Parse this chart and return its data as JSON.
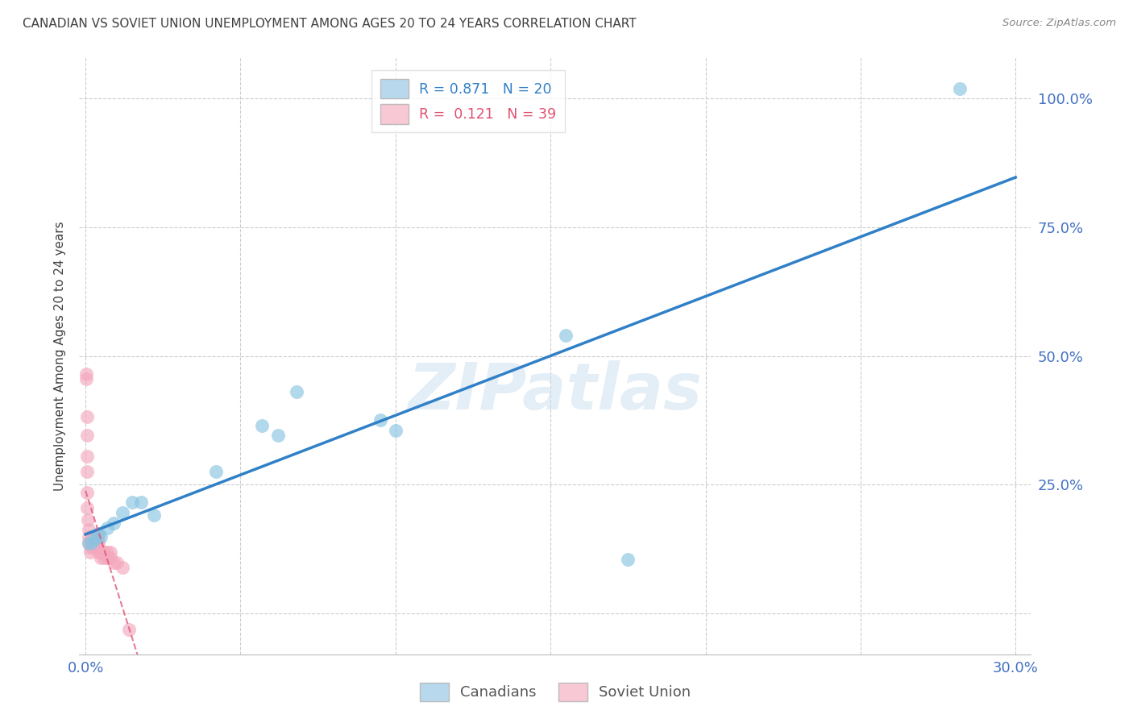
{
  "title": "CANADIAN VS SOVIET UNION UNEMPLOYMENT AMONG AGES 20 TO 24 YEARS CORRELATION CHART",
  "source": "Source: ZipAtlas.com",
  "xlabel": "",
  "ylabel": "Unemployment Among Ages 20 to 24 years",
  "xlim": [
    -0.002,
    0.305
  ],
  "ylim": [
    -0.08,
    1.08
  ],
  "xticks": [
    0.0,
    0.05,
    0.1,
    0.15,
    0.2,
    0.25,
    0.3
  ],
  "xticklabels": [
    "0.0%",
    "",
    "",
    "",
    "",
    "",
    "30.0%"
  ],
  "yticks": [
    0.0,
    0.25,
    0.5,
    0.75,
    1.0
  ],
  "yticklabels": [
    "",
    "25.0%",
    "50.0%",
    "75.0%",
    "100.0%"
  ],
  "canadian_R": 0.871,
  "canadian_N": 20,
  "soviet_R": 0.121,
  "soviet_N": 39,
  "canadian_color": "#89c4e1",
  "soviet_color": "#f4a8be",
  "canadian_trend_color": "#3080c8",
  "soviet_trend_color": "#e05070",
  "watermark": "ZIPatlas",
  "canadian_x": [
    0.001,
    0.002,
    0.003,
    0.004,
    0.005,
    0.007,
    0.009,
    0.012,
    0.015,
    0.018,
    0.022,
    0.042,
    0.057,
    0.062,
    0.068,
    0.095,
    0.1,
    0.155,
    0.175,
    0.282
  ],
  "canadian_y": [
    0.135,
    0.138,
    0.145,
    0.155,
    0.148,
    0.165,
    0.175,
    0.195,
    0.215,
    0.215,
    0.19,
    0.275,
    0.365,
    0.345,
    0.43,
    0.375,
    0.355,
    0.54,
    0.105,
    1.02
  ],
  "soviet_x": [
    0.0003,
    0.0003,
    0.0004,
    0.0004,
    0.0005,
    0.0005,
    0.0006,
    0.0006,
    0.0007,
    0.001,
    0.001,
    0.001,
    0.0015,
    0.0015,
    0.002,
    0.002,
    0.002,
    0.0022,
    0.003,
    0.003,
    0.003,
    0.003,
    0.004,
    0.004,
    0.004,
    0.004,
    0.005,
    0.005,
    0.005,
    0.006,
    0.006,
    0.007,
    0.007,
    0.008,
    0.008,
    0.009,
    0.01,
    0.012,
    0.014
  ],
  "soviet_y": [
    0.455,
    0.465,
    0.382,
    0.345,
    0.305,
    0.275,
    0.235,
    0.205,
    0.182,
    0.162,
    0.148,
    0.138,
    0.128,
    0.118,
    0.148,
    0.138,
    0.135,
    0.128,
    0.148,
    0.138,
    0.128,
    0.138,
    0.148,
    0.128,
    0.118,
    0.138,
    0.118,
    0.118,
    0.108,
    0.118,
    0.108,
    0.118,
    0.108,
    0.118,
    0.108,
    0.098,
    0.098,
    0.088,
    -0.032
  ],
  "background_color": "#ffffff",
  "grid_color": "#cccccc",
  "tick_color": "#4472c4",
  "title_color": "#404040",
  "legend_box_color_canadian": "#b8d8ee",
  "legend_box_color_soviet": "#f8c8d4"
}
